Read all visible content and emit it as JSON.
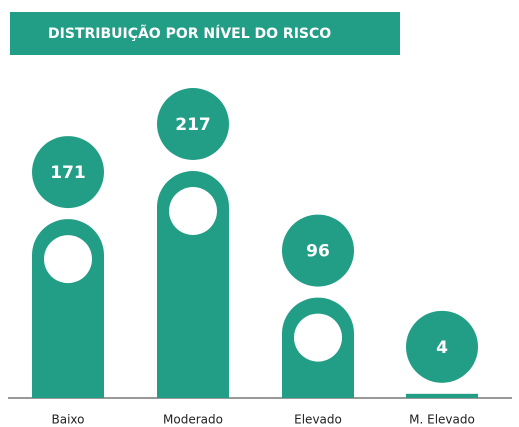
{
  "chart_data": {
    "type": "bar",
    "title": "DISTRIBUIÇÃO POR NÍVEL DO RISCO",
    "categories": [
      "Baixo",
      "Moderado",
      "Elevado",
      "M. Elevado"
    ],
    "values": [
      171,
      217,
      96,
      4
    ],
    "color": "#239e86"
  }
}
